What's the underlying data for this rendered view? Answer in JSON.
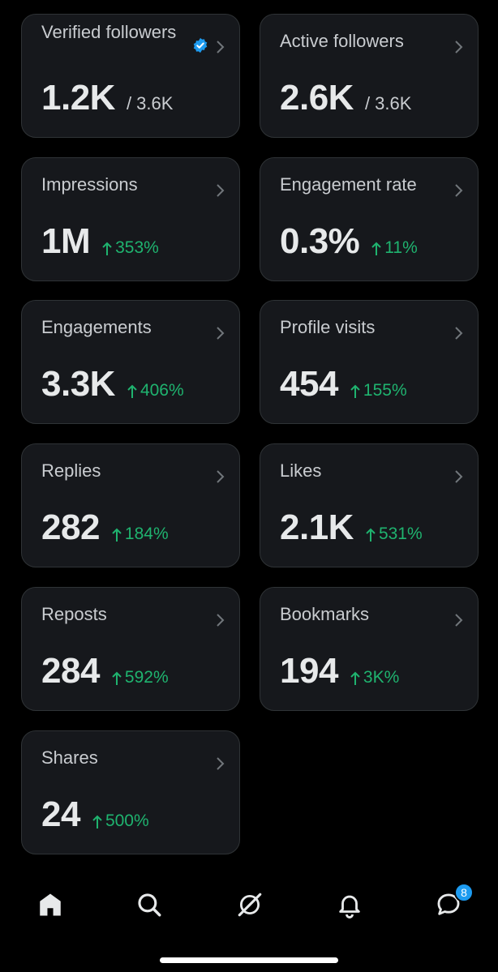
{
  "cards": [
    {
      "id": "verified-followers",
      "title": "Verified followers",
      "value": "1.2K",
      "sub": "/ 3.6K",
      "verified": true
    },
    {
      "id": "active-followers",
      "title": "Active followers",
      "value": "2.6K",
      "sub": "/ 3.6K"
    },
    {
      "id": "impressions",
      "title": "Impressions",
      "value": "1M",
      "delta": "353%"
    },
    {
      "id": "engagement-rate",
      "title": "Engagement rate",
      "value": "0.3%",
      "delta": "11%"
    },
    {
      "id": "engagements",
      "title": "Engagements",
      "value": "3.3K",
      "delta": "406%"
    },
    {
      "id": "profile-visits",
      "title": "Profile visits",
      "value": "454",
      "delta": "155%"
    },
    {
      "id": "replies",
      "title": "Replies",
      "value": "282",
      "delta": "184%"
    },
    {
      "id": "likes",
      "title": "Likes",
      "value": "2.1K",
      "delta": "531%"
    },
    {
      "id": "reposts",
      "title": "Reposts",
      "value": "284",
      "delta": "592%"
    },
    {
      "id": "bookmarks",
      "title": "Bookmarks",
      "value": "194",
      "delta": "3K%"
    },
    {
      "id": "shares",
      "title": "Shares",
      "value": "24",
      "delta": "500%"
    }
  ],
  "nav": {
    "items": [
      "home-icon",
      "search-icon",
      "grok-icon",
      "bell-icon",
      "messages-icon"
    ],
    "messages_badge": "8"
  },
  "colors": {
    "accent": "#1d9bf0",
    "positive": "#1fb36f",
    "card_bg": "#16181c"
  }
}
